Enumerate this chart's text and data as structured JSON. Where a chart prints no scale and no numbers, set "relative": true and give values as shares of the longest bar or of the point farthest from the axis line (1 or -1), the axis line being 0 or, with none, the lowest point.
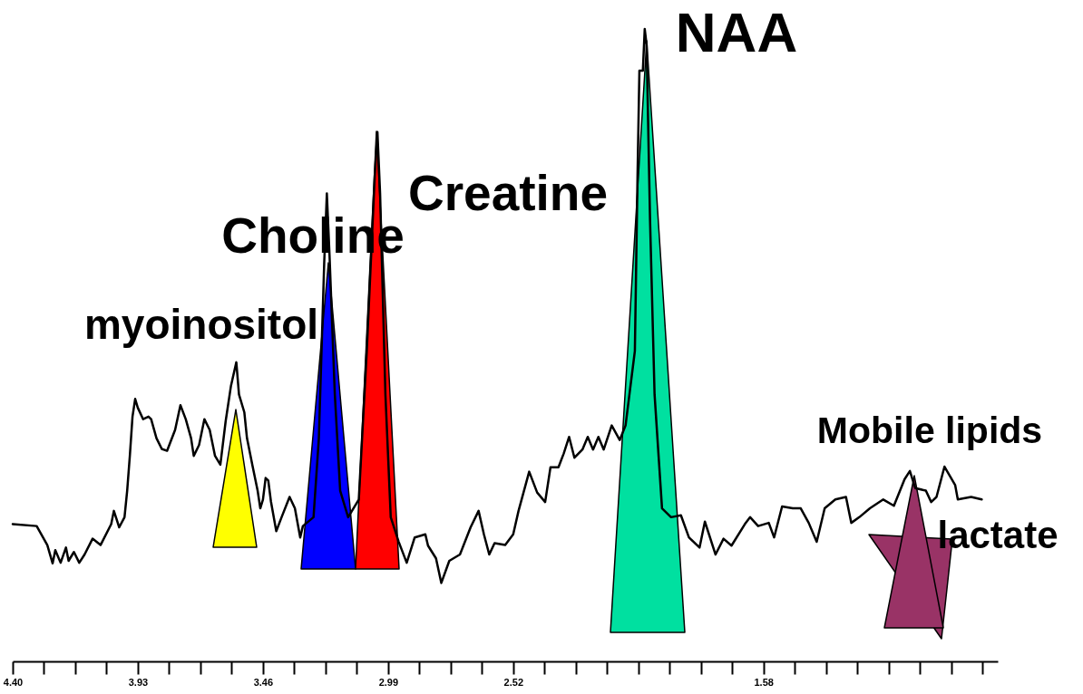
{
  "chart_data": {
    "type": "line",
    "relative": true,
    "xlim": [
      4.4,
      0.7
    ],
    "xticks": [
      {
        "value": 4.4,
        "label": "4.40"
      },
      {
        "value": 4.283,
        "label": null
      },
      {
        "value": 4.165,
        "label": null
      },
      {
        "value": 4.048,
        "label": null
      },
      3.93,
      {
        "value": 3.813,
        "label": null
      },
      {
        "value": 3.695,
        "label": null
      },
      {
        "value": 3.578,
        "label": null
      },
      3.46,
      {
        "value": 3.343,
        "label": null
      },
      {
        "value": 3.225,
        "label": null
      },
      {
        "value": 3.108,
        "label": null
      },
      2.99,
      {
        "value": 2.873,
        "label": null
      },
      {
        "value": 2.755,
        "label": null
      },
      {
        "value": 2.638,
        "label": null
      },
      2.52,
      {
        "value": 2.403,
        "label": null
      },
      {
        "value": 2.285,
        "label": null
      },
      {
        "value": 2.168,
        "label": null
      },
      {
        "value": 2.05,
        "label": null
      },
      {
        "value": 1.933,
        "label": null
      },
      {
        "value": 1.815,
        "label": null
      },
      {
        "value": 1.698,
        "label": null
      },
      1.58,
      {
        "value": 1.463,
        "label": null
      },
      {
        "value": 1.345,
        "label": null
      },
      {
        "value": 1.228,
        "label": null
      },
      {
        "value": 1.11,
        "label": null
      },
      {
        "value": 0.993,
        "label": null
      },
      {
        "value": 0.875,
        "label": null
      },
      {
        "value": 0.758,
        "label": null
      }
    ],
    "tick_labels": "x",
    "series": [
      {
        "color": "#000000",
        "x": [
          4.4,
          4.31,
          4.27,
          4.25,
          4.24,
          4.22,
          4.2,
          4.19,
          4.17,
          4.15,
          4.13,
          4.1,
          4.07,
          4.03,
          4.02,
          4.01,
          4.0,
          3.98,
          3.97,
          3.96,
          3.95,
          3.94,
          3.93,
          3.91,
          3.89,
          3.88,
          3.86,
          3.84,
          3.82,
          3.79,
          3.77,
          3.75,
          3.73,
          3.72,
          3.7,
          3.68,
          3.66,
          3.64,
          3.62,
          3.6,
          3.58,
          3.56,
          3.55,
          3.53,
          3.52,
          3.5,
          3.48,
          3.47,
          3.46,
          3.45,
          3.44,
          3.43,
          3.41,
          3.39,
          3.36,
          3.34,
          3.32,
          3.31,
          3.27,
          3.25,
          3.23,
          3.22,
          3.21,
          3.19,
          3.17,
          3.14,
          3.1,
          3.07,
          3.04,
          3.03,
          3.02,
          3.0,
          2.98,
          2.95,
          2.92,
          2.89,
          2.85,
          2.84,
          2.81,
          2.79,
          2.76,
          2.72,
          2.68,
          2.65,
          2.63,
          2.61,
          2.59,
          2.55,
          2.52,
          2.5,
          2.46,
          2.43,
          2.4,
          2.38,
          2.35,
          2.33,
          2.31,
          2.29,
          2.26,
          2.24,
          2.22,
          2.2,
          2.18,
          2.15,
          2.12,
          2.098,
          2.063,
          2.053,
          2.046,
          2.033,
          2.026,
          2.019,
          2.006,
          1.989,
          1.961,
          1.927,
          1.89,
          1.86,
          1.82,
          1.8,
          1.76,
          1.73,
          1.7,
          1.65,
          1.63,
          1.6,
          1.56,
          1.54,
          1.51,
          1.47,
          1.44,
          1.41,
          1.38,
          1.35,
          1.31,
          1.27,
          1.25,
          1.22,
          1.18,
          1.13,
          1.09,
          1.05,
          1.03,
          1.01,
          0.97,
          0.95,
          0.93,
          0.9,
          0.86,
          0.85,
          0.8,
          0.76
        ],
        "values": [
          0.217,
          0.214,
          0.184,
          0.155,
          0.176,
          0.156,
          0.18,
          0.159,
          0.173,
          0.156,
          0.169,
          0.194,
          0.184,
          0.217,
          0.238,
          0.225,
          0.212,
          0.228,
          0.27,
          0.325,
          0.387,
          0.415,
          0.401,
          0.383,
          0.387,
          0.383,
          0.353,
          0.336,
          0.333,
          0.366,
          0.405,
          0.383,
          0.353,
          0.325,
          0.342,
          0.383,
          0.366,
          0.325,
          0.311,
          0.38,
          0.436,
          0.473,
          0.422,
          0.394,
          0.353,
          0.311,
          0.27,
          0.242,
          0.256,
          0.29,
          0.286,
          0.253,
          0.206,
          0.228,
          0.26,
          0.242,
          0.196,
          0.214,
          0.228,
          0.353,
          0.629,
          0.74,
          0.643,
          0.422,
          0.27,
          0.228,
          0.256,
          0.491,
          0.768,
          0.837,
          0.74,
          0.422,
          0.228,
          0.189,
          0.156,
          0.196,
          0.201,
          0.183,
          0.163,
          0.124,
          0.159,
          0.169,
          0.212,
          0.238,
          0.201,
          0.169,
          0.187,
          0.184,
          0.201,
          0.238,
          0.3,
          0.267,
          0.252,
          0.307,
          0.307,
          0.329,
          0.355,
          0.322,
          0.335,
          0.355,
          0.335,
          0.355,
          0.335,
          0.373,
          0.35,
          0.373,
          0.491,
          0.768,
          0.934,
          0.934,
          1.0,
          0.975,
          0.698,
          0.422,
          0.242,
          0.228,
          0.231,
          0.196,
          0.18,
          0.221,
          0.169,
          0.194,
          0.183,
          0.217,
          0.228,
          0.214,
          0.219,
          0.196,
          0.245,
          0.242,
          0.242,
          0.219,
          0.189,
          0.242,
          0.256,
          0.26,
          0.219,
          0.228,
          0.242,
          0.256,
          0.246,
          0.288,
          0.301,
          0.274,
          0.27,
          0.252,
          0.26,
          0.308,
          0.279,
          0.256,
          0.26,
          0.256
        ]
      }
    ],
    "annotations": [
      "NAA",
      "Creatine",
      "Choline",
      "myoinositol",
      "Mobile lipids",
      "lactate"
    ]
  }
}
